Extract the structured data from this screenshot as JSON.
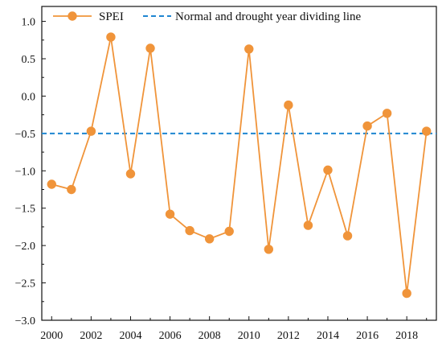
{
  "chart_data": {
    "type": "line",
    "title": "",
    "xlabel": "",
    "ylabel": "",
    "x": [
      2000,
      2001,
      2002,
      2003,
      2004,
      2005,
      2006,
      2007,
      2008,
      2009,
      2010,
      2011,
      2012,
      2013,
      2014,
      2015,
      2016,
      2017,
      2018,
      2019
    ],
    "series": [
      {
        "name": "SPEI",
        "values": [
          -1.18,
          -1.25,
          -0.47,
          0.79,
          -1.04,
          0.64,
          -1.58,
          -1.8,
          -1.91,
          -1.81,
          0.63,
          -2.05,
          -0.12,
          -1.73,
          -0.99,
          -1.87,
          -0.4,
          -0.23,
          -2.64,
          -0.47
        ],
        "color": "#F0943A",
        "marker": "circle"
      }
    ],
    "reference_lines": [
      {
        "name": "Normal and drought year dividing line",
        "y": -0.5,
        "color": "#1F86D1",
        "style": "dashed"
      }
    ],
    "xlim": [
      1999.5,
      2019.5
    ],
    "ylim": [
      -3.0,
      1.2
    ],
    "x_tick_labels": [
      "2000",
      "2002",
      "2004",
      "2006",
      "2008",
      "2010",
      "2012",
      "2014",
      "2016",
      "2018"
    ],
    "y_tick_labels": [
      "1.0",
      "0.5",
      "0.0",
      "-0.5",
      "-1.0",
      "-1.5",
      "-2.0",
      "-2.5",
      "-3.0"
    ],
    "legend_position": "top",
    "grid": false
  }
}
